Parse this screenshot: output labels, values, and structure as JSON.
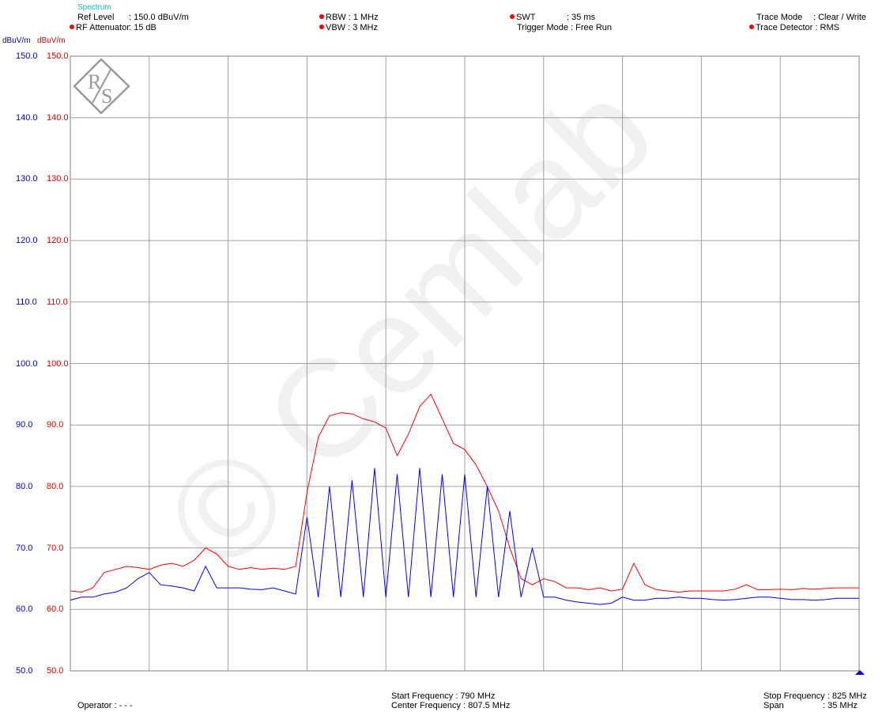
{
  "header": {
    "section": "Spectrum",
    "ref_level_label": "Ref Level",
    "ref_level_value": ": 150.0 dBuV/m",
    "rf_att_label": "RF Attenuator",
    "rf_att_value": ":  15    dB",
    "rbw": "RBW : 1 MHz",
    "vbw": "VBW : 3 MHz",
    "swt_label": "SWT",
    "swt_value": ": 35 ms",
    "trigger": "Trigger Mode : Free Run",
    "trace_mode_label": "Trace Mode",
    "trace_mode_value": ": Clear / Write",
    "trace_detector": "Trace Detector : RMS"
  },
  "footer": {
    "operator": "Operator : - - -",
    "start_freq": "Start Frequency    : 790    MHz",
    "center_freq": "Center Frequency : 807.5 MHz",
    "stop_freq": "Stop Frequency : 825 MHz",
    "span_label": "Span",
    "span_value": ":   35 MHz"
  },
  "watermark": "© Cemlab",
  "colors": {
    "red_trace": "#ff0000",
    "blue_trace": "#0000ff",
    "grid": "#a0a0a0"
  },
  "chart_data": {
    "type": "line",
    "xlim": [
      790,
      825
    ],
    "ylim": [
      50,
      150
    ],
    "yticks": [
      "150.0",
      "140.0",
      "130.0",
      "120.0",
      "110.0",
      "100.0",
      "90.0",
      "80.0",
      "70.0",
      "60.0",
      "50.0"
    ],
    "yunit_left": "dBuV/m",
    "yunit_right": "dBuV/m",
    "grid": true,
    "x_grid_divisions": 10,
    "series": [
      {
        "color": "red",
        "x": [
          790,
          790.5,
          791,
          791.5,
          792,
          792.5,
          793,
          793.5,
          794,
          794.5,
          795,
          795.5,
          796,
          796.5,
          797,
          797.5,
          798,
          798.5,
          799,
          799.5,
          800,
          800.5,
          801,
          801.5,
          802,
          802.5,
          803,
          803.5,
          804,
          804.5,
          805,
          805.5,
          806,
          806.5,
          807,
          807.5,
          808,
          808.5,
          809,
          809.5,
          810,
          810.5,
          811,
          811.5,
          812,
          812.5,
          813,
          813.5,
          814,
          814.5,
          815,
          815.5,
          816,
          816.5,
          817,
          817.5,
          818,
          818.5,
          819,
          819.5,
          820,
          820.5,
          821,
          821.5,
          822,
          822.5,
          823,
          823.5,
          824,
          825
        ],
        "values": [
          63.0,
          62.8,
          63.5,
          66.0,
          66.5,
          67.0,
          66.8,
          66.5,
          67.2,
          67.5,
          67.0,
          68.0,
          70.0,
          69.0,
          67.0,
          66.5,
          66.8,
          66.5,
          66.7,
          66.5,
          67.0,
          79.0,
          88.0,
          91.5,
          92.0,
          91.8,
          91.0,
          90.5,
          89.5,
          85.0,
          88.5,
          93.0,
          95.0,
          91.0,
          87.0,
          86.0,
          83.5,
          80.0,
          76.0,
          70.0,
          65.0,
          64.0,
          65.0,
          64.5,
          63.5,
          63.5,
          63.2,
          63.5,
          63.0,
          63.3,
          67.5,
          64.0,
          63.2,
          63.0,
          62.8,
          63.0,
          63.0,
          63.0,
          63.0,
          63.3,
          64.0,
          63.2,
          63.2,
          63.3,
          63.2,
          63.4,
          63.3,
          63.4,
          63.5,
          63.5
        ]
      },
      {
        "color": "blue",
        "x": [
          790,
          790.5,
          791,
          791.5,
          792,
          792.5,
          793,
          793.5,
          794,
          794.5,
          795,
          795.5,
          796,
          796.5,
          797,
          797.5,
          798,
          798.5,
          799,
          799.5,
          800,
          800.5,
          801,
          801.5,
          802,
          802.5,
          803,
          803.5,
          804,
          804.5,
          805,
          805.5,
          806,
          806.5,
          807,
          807.5,
          808,
          808.5,
          809,
          809.5,
          810,
          810.5,
          811,
          811.5,
          812,
          812.5,
          813,
          813.5,
          814,
          814.5,
          815,
          815.5,
          816,
          816.5,
          817,
          817.5,
          818,
          818.5,
          819,
          819.5,
          820,
          820.5,
          821,
          821.5,
          822,
          822.5,
          823,
          823.5,
          824,
          825
        ],
        "values": [
          61.5,
          62.0,
          62.0,
          62.5,
          62.8,
          63.5,
          65.0,
          66.0,
          64.0,
          63.8,
          63.5,
          63.0,
          67.0,
          63.5,
          63.5,
          63.5,
          63.3,
          63.2,
          63.5,
          63.0,
          62.5,
          75.0,
          62.0,
          80.0,
          62.0,
          81.0,
          62.0,
          83.0,
          62.0,
          82.0,
          62.0,
          83.0,
          62.0,
          82.0,
          62.0,
          82.0,
          62.0,
          80.0,
          62.0,
          76.0,
          62.0,
          70.0,
          62.0,
          62.0,
          61.5,
          61.2,
          61.0,
          60.8,
          61.0,
          62.0,
          61.5,
          61.5,
          61.8,
          61.8,
          62.0,
          61.8,
          61.8,
          61.6,
          61.5,
          61.6,
          61.8,
          62.0,
          62.0,
          61.8,
          61.6,
          61.6,
          61.5,
          61.6,
          61.8,
          61.8
        ]
      }
    ]
  }
}
